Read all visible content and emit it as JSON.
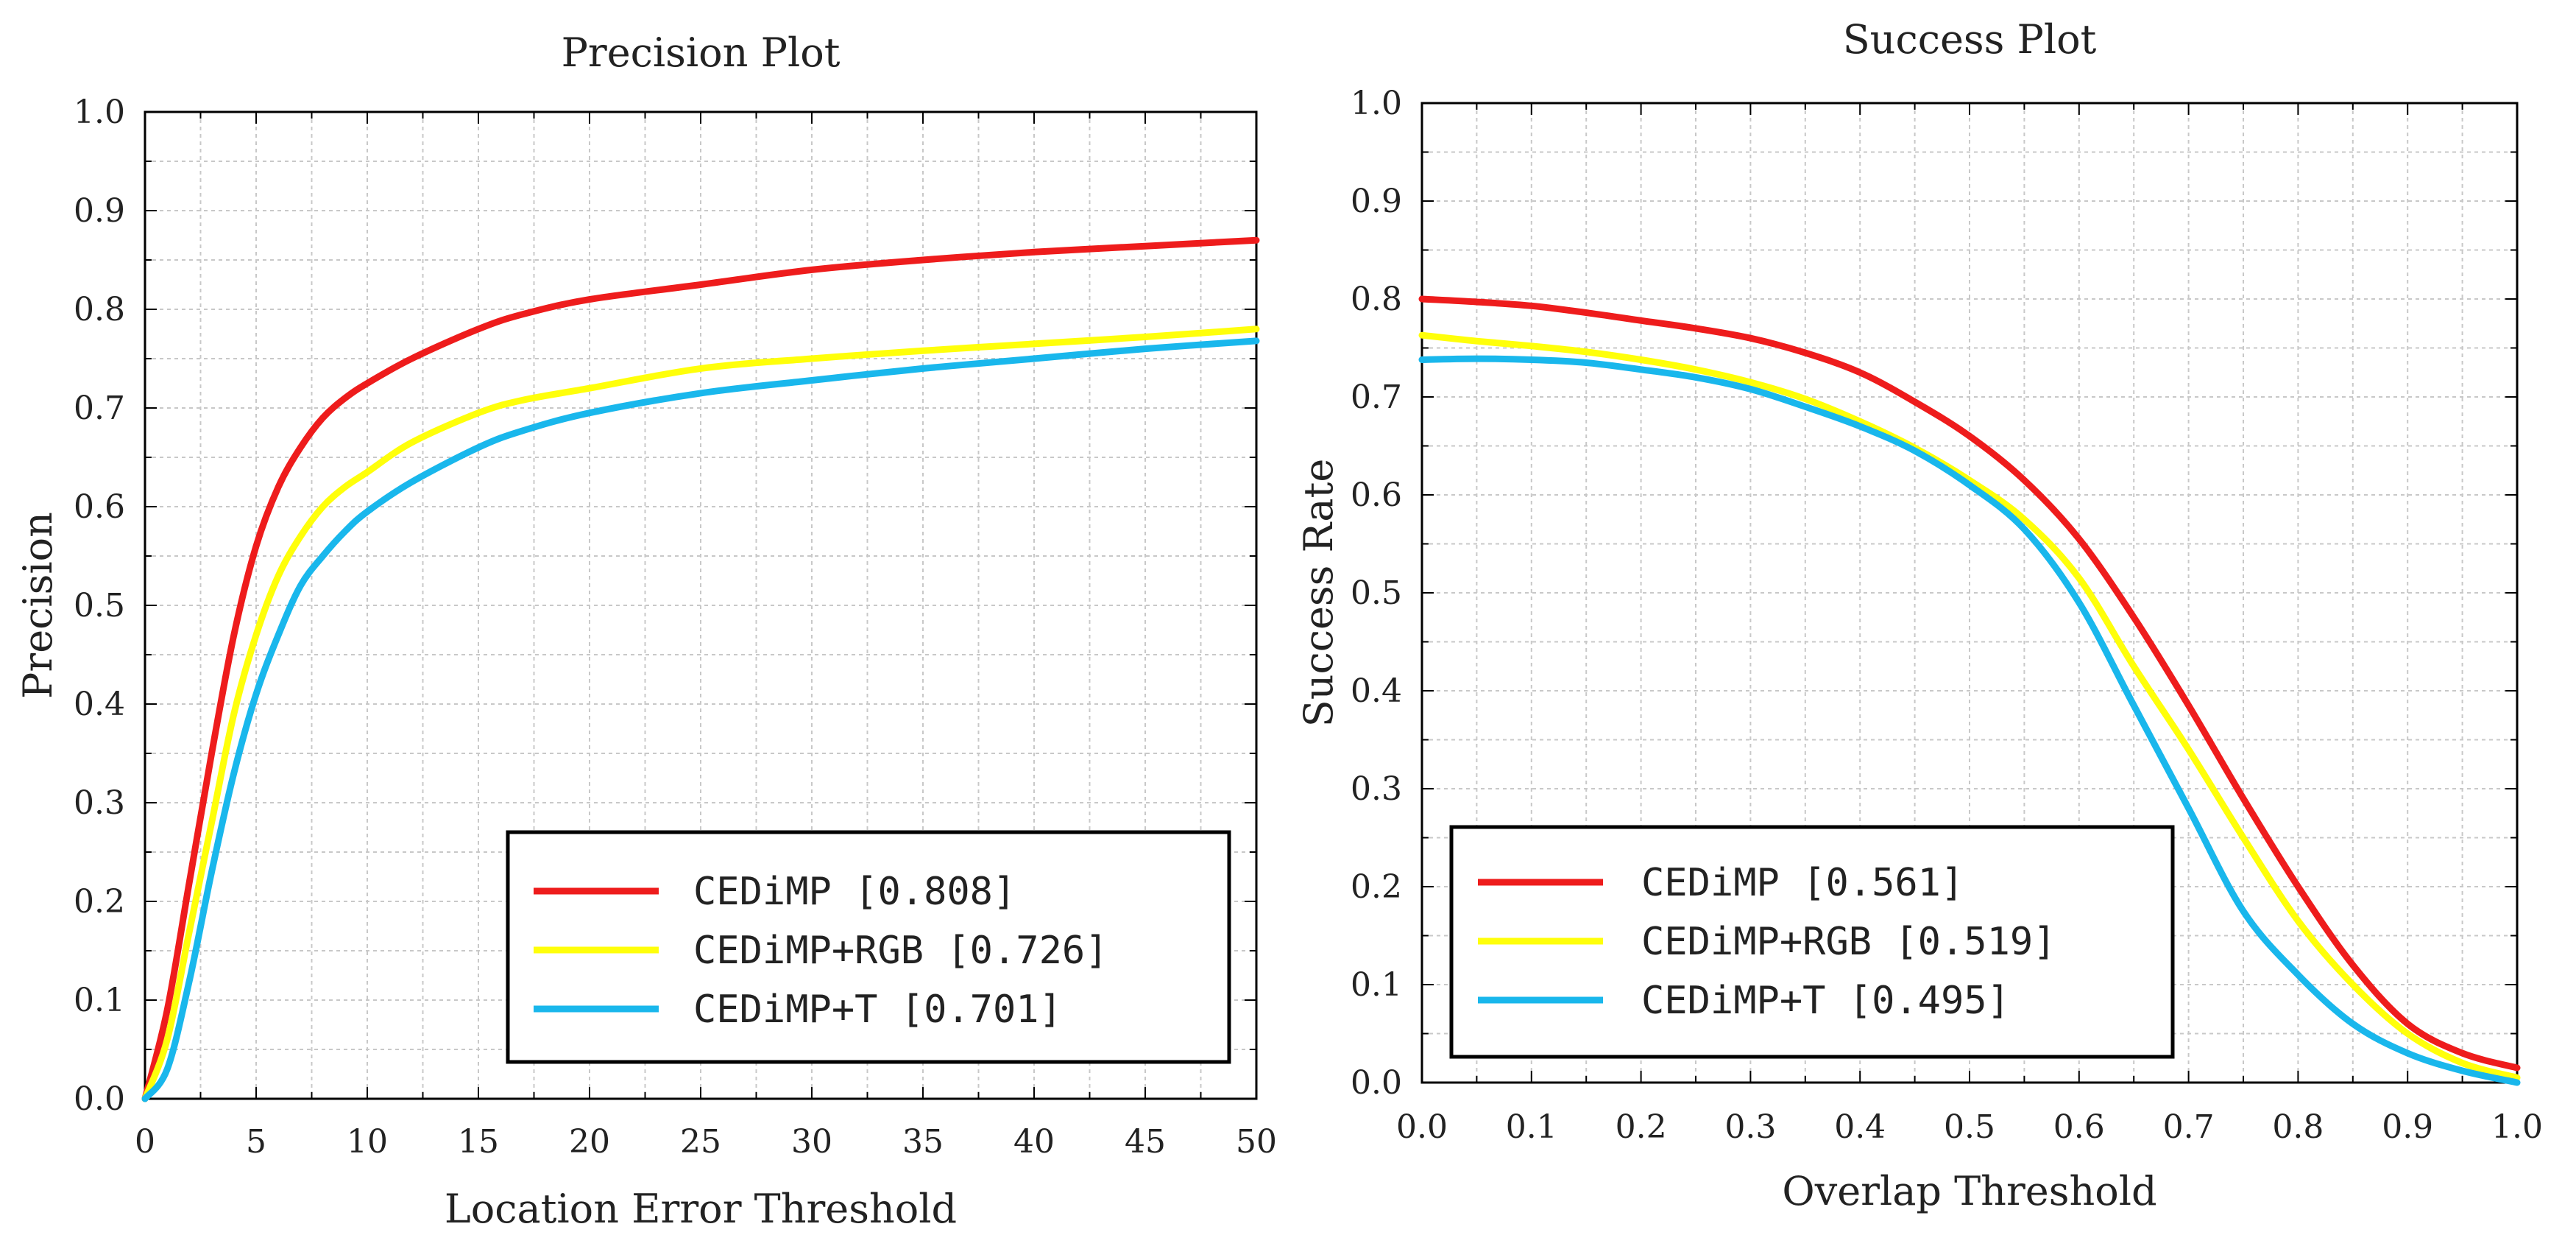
{
  "chart_data": [
    {
      "type": "line",
      "title": "Precision Plot",
      "xlabel": "Location Error Threshold",
      "ylabel": "Precision",
      "xlim": [
        0,
        50
      ],
      "ylim": [
        0,
        1
      ],
      "xticks": [
        0,
        5,
        10,
        15,
        20,
        25,
        30,
        35,
        40,
        45,
        50
      ],
      "yticks": [
        "0.0",
        "0.1",
        "0.2",
        "0.3",
        "0.4",
        "0.5",
        "0.6",
        "0.7",
        "0.8",
        "0.9",
        "1.0"
      ],
      "grid": true,
      "legend_position": "bottom-right",
      "series": [
        {
          "name": "CEDiMP",
          "score": "0.808",
          "legend_label": "CEDiMP [0.808]",
          "color": "#ee1c1c",
          "x": [
            0,
            1,
            2,
            3,
            4,
            5,
            6,
            7,
            8,
            9,
            10,
            12,
            15,
            17,
            20,
            25,
            30,
            35,
            40,
            45,
            50
          ],
          "y": [
            0.0,
            0.09,
            0.22,
            0.35,
            0.47,
            0.56,
            0.62,
            0.66,
            0.69,
            0.71,
            0.725,
            0.75,
            0.78,
            0.795,
            0.81,
            0.825,
            0.84,
            0.85,
            0.858,
            0.864,
            0.87
          ]
        },
        {
          "name": "CEDiMP+RGB",
          "score": "0.726",
          "legend_label": "CEDiMP+RGB [0.726]",
          "color": "#ffff0a",
          "x": [
            0,
            1,
            2,
            3,
            4,
            5,
            6,
            7,
            8,
            9,
            10,
            12,
            15,
            17,
            20,
            25,
            30,
            35,
            40,
            45,
            50
          ],
          "y": [
            0.0,
            0.06,
            0.17,
            0.28,
            0.39,
            0.47,
            0.53,
            0.57,
            0.6,
            0.62,
            0.635,
            0.665,
            0.695,
            0.708,
            0.72,
            0.74,
            0.75,
            0.758,
            0.765,
            0.772,
            0.78
          ]
        },
        {
          "name": "CEDiMP+T",
          "score": "0.701",
          "legend_label": "CEDiMP+T [0.701]",
          "color": "#19b7ec",
          "x": [
            0,
            1,
            2,
            3,
            4,
            5,
            6,
            7,
            8,
            9,
            10,
            12,
            15,
            17,
            20,
            25,
            30,
            35,
            40,
            45,
            50
          ],
          "y": [
            0.0,
            0.03,
            0.12,
            0.23,
            0.33,
            0.41,
            0.47,
            0.52,
            0.55,
            0.575,
            0.595,
            0.625,
            0.66,
            0.677,
            0.695,
            0.715,
            0.728,
            0.74,
            0.75,
            0.76,
            0.768
          ]
        }
      ]
    },
    {
      "type": "line",
      "title": "Success Plot",
      "xlabel": "Overlap Threshold",
      "ylabel": "Success Rate",
      "xlim": [
        0,
        1
      ],
      "ylim": [
        0,
        1
      ],
      "xticks": [
        "0.0",
        "0.1",
        "0.2",
        "0.3",
        "0.4",
        "0.5",
        "0.6",
        "0.7",
        "0.8",
        "0.9",
        "1.0"
      ],
      "yticks": [
        "0.0",
        "0.1",
        "0.2",
        "0.3",
        "0.4",
        "0.5",
        "0.6",
        "0.7",
        "0.8",
        "0.9",
        "1.0"
      ],
      "grid": true,
      "legend_position": "bottom-left",
      "series": [
        {
          "name": "CEDiMP",
          "score": "0.561",
          "legend_label": "CEDiMP [0.561]",
          "color": "#ee1c1c",
          "x": [
            0,
            0.05,
            0.1,
            0.15,
            0.2,
            0.25,
            0.3,
            0.35,
            0.4,
            0.45,
            0.5,
            0.55,
            0.6,
            0.65,
            0.7,
            0.75,
            0.8,
            0.85,
            0.9,
            0.95,
            1.0
          ],
          "y": [
            0.8,
            0.797,
            0.793,
            0.786,
            0.778,
            0.77,
            0.76,
            0.745,
            0.725,
            0.695,
            0.66,
            0.615,
            0.555,
            0.475,
            0.385,
            0.29,
            0.2,
            0.12,
            0.06,
            0.03,
            0.015
          ]
        },
        {
          "name": "CEDiMP+RGB",
          "score": "0.519",
          "legend_label": "CEDiMP+RGB [0.519]",
          "color": "#ffff0a",
          "x": [
            0,
            0.05,
            0.1,
            0.15,
            0.2,
            0.25,
            0.3,
            0.35,
            0.4,
            0.45,
            0.5,
            0.55,
            0.6,
            0.65,
            0.7,
            0.75,
            0.8,
            0.85,
            0.9,
            0.95,
            1.0
          ],
          "y": [
            0.763,
            0.757,
            0.752,
            0.746,
            0.738,
            0.728,
            0.715,
            0.698,
            0.675,
            0.648,
            0.615,
            0.575,
            0.515,
            0.425,
            0.34,
            0.25,
            0.165,
            0.1,
            0.05,
            0.02,
            0.005
          ]
        },
        {
          "name": "CEDiMP+T",
          "score": "0.495",
          "legend_label": "CEDiMP+T [0.495]",
          "color": "#19b7ec",
          "x": [
            0,
            0.05,
            0.1,
            0.15,
            0.2,
            0.25,
            0.3,
            0.35,
            0.4,
            0.45,
            0.5,
            0.55,
            0.6,
            0.65,
            0.7,
            0.75,
            0.8,
            0.85,
            0.9,
            0.95,
            1.0
          ],
          "y": [
            0.738,
            0.739,
            0.738,
            0.735,
            0.728,
            0.72,
            0.708,
            0.69,
            0.67,
            0.645,
            0.61,
            0.565,
            0.49,
            0.385,
            0.28,
            0.175,
            0.11,
            0.06,
            0.03,
            0.012,
            0.0
          ]
        }
      ]
    }
  ]
}
